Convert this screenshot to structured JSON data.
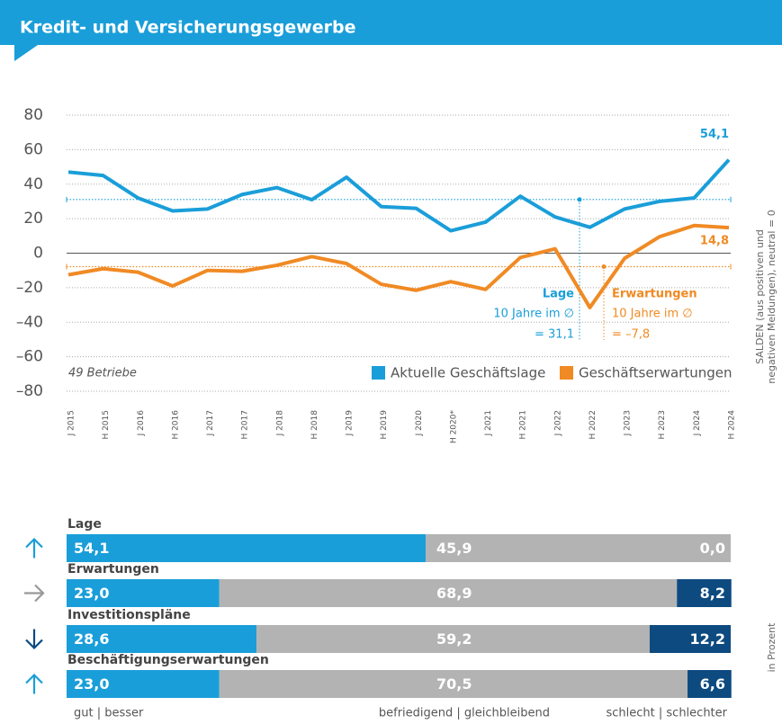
{
  "header": {
    "title": "Kredit- und Versicherungsgewerbe"
  },
  "chart_data": [
    {
      "type": "line",
      "note": "49 Betriebe",
      "y_label": [
        "SALDEN (aus positiven und",
        "negativen Meldungen), neutral = 0"
      ],
      "categories": [
        "J 2015",
        "H 2015",
        "J 2016",
        "H 2016",
        "J 2017",
        "H 2017",
        "J 2018",
        "H 2018",
        "J 2019",
        "H 2019",
        "J 2020",
        "H 2020*",
        "J 2021",
        "H 2021",
        "J 2022",
        "H 2022",
        "J 2023",
        "H 2023",
        "J 2024",
        "H 2024"
      ],
      "series": [
        {
          "name": "Aktuelle Geschäftslage",
          "color": "#1a9ed9",
          "values": [
            47,
            45,
            32,
            24.5,
            25.6,
            34,
            38,
            31,
            44,
            27,
            26,
            13,
            18,
            33,
            21,
            15,
            25.6,
            30,
            32,
            54.1
          ],
          "value_labels": [
            null,
            null,
            null,
            null,
            null,
            null,
            null,
            null,
            null,
            null,
            null,
            null,
            null,
            null,
            null,
            null,
            null,
            null,
            null,
            "54,1"
          ],
          "annotation_title": "Lage",
          "annotation_text": "10 Jahre im ∅",
          "average": 31.1,
          "average_label": "= 31,1"
        },
        {
          "name": "Geschäftserwartungen",
          "color": "#f08a24",
          "values": [
            -12.5,
            -9,
            -11,
            -19,
            -10,
            -10.5,
            -7,
            -2,
            -6,
            -18,
            -21.5,
            -16.5,
            -21,
            -2.5,
            2.5,
            -31.5,
            -3,
            9.5,
            16,
            14.8
          ],
          "value_labels": [
            null,
            null,
            null,
            null,
            null,
            null,
            null,
            null,
            null,
            null,
            null,
            null,
            null,
            null,
            null,
            null,
            null,
            null,
            null,
            "14,8"
          ],
          "annotation_title": "Erwartungen",
          "annotation_text": "10 Jahre im ∅",
          "average": -7.8,
          "average_label": "= –7,8"
        }
      ],
      "ylim": [
        -80,
        80
      ],
      "yticks": [
        80,
        60,
        40,
        20,
        0,
        {
          "value": -20,
          "label": "–20"
        },
        {
          "value": -40,
          "label": "–40"
        },
        {
          "value": -60,
          "label": "–60"
        },
        {
          "value": -80,
          "label": "–80"
        }
      ],
      "grid": true,
      "legend": "bottom-right"
    },
    {
      "type": "bar",
      "orientation": "horizontal",
      "stacked": true,
      "unit_label": "in Prozent",
      "categories": [
        "Lage",
        "Erwartungen",
        "Investitionspläne",
        "Beschäftigungserwartungen"
      ],
      "trends": [
        "up",
        "flat",
        "down",
        "up"
      ],
      "xlim": [
        0,
        100
      ],
      "series": [
        {
          "name": "gut | besser",
          "color": "#1a9ed9",
          "values": [
            54.1,
            23.0,
            28.6,
            23.0
          ],
          "value_labels": [
            "54,1",
            "23,0",
            "28,6",
            "23,0"
          ]
        },
        {
          "name": "befriedigend | gleichbleibend",
          "color": "#b3b3b3",
          "values": [
            45.9,
            68.9,
            59.2,
            70.5
          ],
          "value_labels": [
            "45,9",
            "68,9",
            "59,2",
            "70,5"
          ]
        },
        {
          "name": "schlecht | schlechter",
          "color": "#0d4a80",
          "values": [
            0.0,
            8.2,
            12.2,
            6.6
          ],
          "value_labels": [
            "0,0",
            "8,2",
            "12,2",
            "6,6"
          ]
        }
      ]
    }
  ]
}
